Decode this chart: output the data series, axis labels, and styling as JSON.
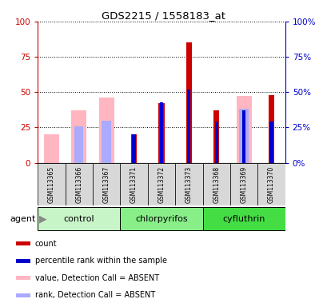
{
  "title": "GDS2215 / 1558183_at",
  "samples": [
    "GSM113365",
    "GSM113366",
    "GSM113367",
    "GSM113371",
    "GSM113372",
    "GSM113373",
    "GSM113368",
    "GSM113369",
    "GSM113370"
  ],
  "groups": [
    {
      "name": "control",
      "indices": [
        0,
        1,
        2
      ],
      "color": "#C8F5C8"
    },
    {
      "name": "chlorpyrifos",
      "indices": [
        3,
        4,
        5
      ],
      "color": "#88EE88"
    },
    {
      "name": "cyfluthrin",
      "indices": [
        6,
        7,
        8
      ],
      "color": "#44DD44"
    }
  ],
  "count_red": [
    0,
    0,
    0,
    20,
    42,
    85,
    37,
    0,
    48
  ],
  "rank_blue": [
    0,
    0,
    0,
    20,
    43,
    52,
    29,
    37,
    29
  ],
  "value_absent_pink": [
    20,
    37,
    46,
    0,
    0,
    0,
    0,
    47,
    0
  ],
  "rank_absent_lightblue": [
    0,
    26,
    30,
    0,
    0,
    0,
    0,
    38,
    0
  ],
  "ylim": [
    0,
    100
  ],
  "yticks": [
    0,
    25,
    50,
    75,
    100
  ],
  "left_color": "#CC0000",
  "right_color": "#0000CC",
  "red_color": "#CC0000",
  "blue_color": "#0000CC",
  "pink_color": "#FFB6C1",
  "lightblue_color": "#AAAAFF",
  "bg_white": "#FFFFFF",
  "bg_gray": "#D8D8D8",
  "agent_label": "agent",
  "legend_labels": [
    "count",
    "percentile rank within the sample",
    "value, Detection Call = ABSENT",
    "rank, Detection Call = ABSENT"
  ],
  "legend_colors": [
    "#CC0000",
    "#0000CC",
    "#FFB6C1",
    "#AAAAFF"
  ]
}
